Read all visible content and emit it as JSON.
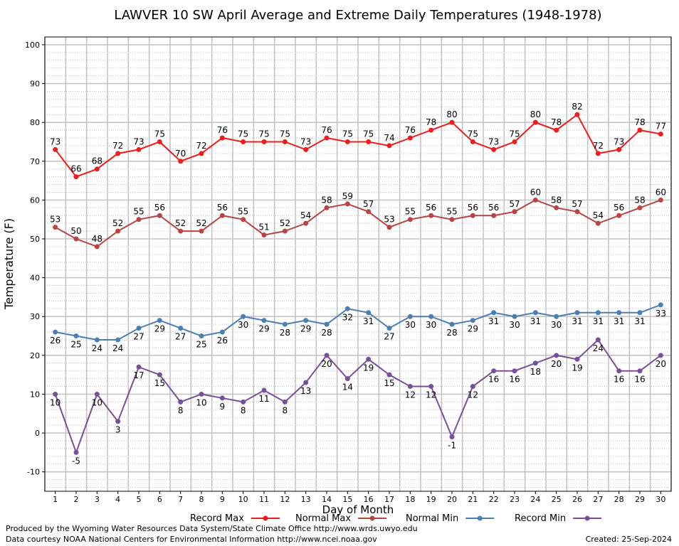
{
  "chart_data": {
    "type": "line",
    "title": "LAWVER 10 SW April Average and Extreme Daily Temperatures (1948-1978)",
    "xlabel": "Day of Month",
    "ylabel": "Temperature (F)",
    "ylim": [
      -15,
      102
    ],
    "y_ticks": [
      -10,
      0,
      10,
      20,
      30,
      40,
      50,
      60,
      70,
      80,
      90,
      100
    ],
    "x": [
      1,
      2,
      3,
      4,
      5,
      6,
      7,
      8,
      9,
      10,
      11,
      12,
      13,
      14,
      15,
      16,
      17,
      18,
      19,
      20,
      21,
      22,
      23,
      24,
      25,
      26,
      27,
      28,
      29,
      30
    ],
    "grid": true,
    "legend_placement": "bottom",
    "series": [
      {
        "name": "Record Max",
        "color": "#ee1c1c",
        "values": [
          73,
          66,
          68,
          72,
          73,
          75,
          70,
          72,
          76,
          75,
          75,
          75,
          73,
          76,
          75,
          75,
          74,
          76,
          78,
          80,
          75,
          73,
          75,
          80,
          78,
          82,
          72,
          73,
          78,
          77
        ]
      },
      {
        "name": "Normal Max",
        "color": "#b84444",
        "values": [
          53,
          50,
          48,
          52,
          55,
          56,
          52,
          52,
          56,
          55,
          51,
          52,
          54,
          58,
          59,
          57,
          53,
          55,
          56,
          55,
          56,
          56,
          57,
          60,
          58,
          57,
          54,
          56,
          58,
          60
        ]
      },
      {
        "name": "Normal Min",
        "color": "#4a7fb5",
        "values": [
          26,
          25,
          24,
          24,
          27,
          29,
          27,
          25,
          26,
          30,
          29,
          28,
          29,
          28,
          32,
          31,
          27,
          30,
          30,
          28,
          29,
          31,
          30,
          31,
          30,
          31,
          31,
          31,
          31,
          33
        ]
      },
      {
        "name": "Record Min",
        "color": "#7a4f9a",
        "values": [
          10,
          -5,
          10,
          3,
          17,
          15,
          8,
          10,
          9,
          8,
          11,
          8,
          13,
          20,
          14,
          19,
          15,
          12,
          12,
          -1,
          12,
          16,
          16,
          18,
          20,
          19,
          24,
          16,
          16,
          20
        ]
      }
    ]
  },
  "footer": {
    "produced_by": "Produced by the Wyoming Water Resources Data System/State Climate Office http://www.wrds.uwyo.edu",
    "courtesy": "Data courtesy NOAA National Centers for Environmental Information http://www.ncei.noaa.gov",
    "created": "Created: 25-Sep-2024"
  }
}
